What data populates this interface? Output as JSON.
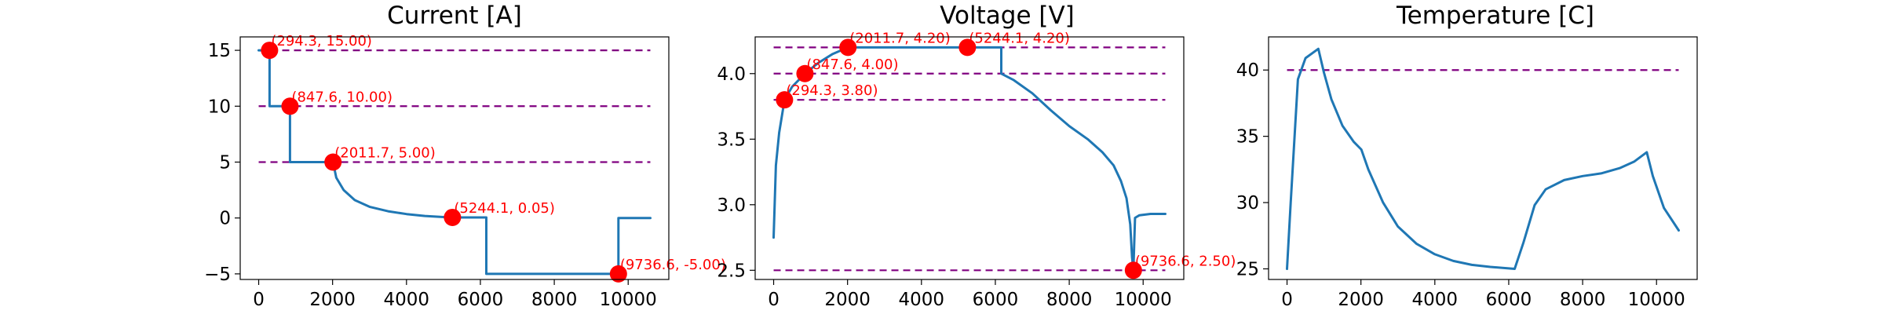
{
  "colors": {
    "series": "#1f77b4",
    "reference": "#800080",
    "marker": "#ff0000",
    "annotation": "#ff0000"
  },
  "chart_data": [
    {
      "type": "line",
      "title": "Current [A]",
      "xlabel": "",
      "ylabel": "",
      "xlim": [
        -500,
        11100
      ],
      "ylim": [
        -5.5,
        16.2
      ],
      "xticks": [
        0,
        2000,
        4000,
        6000,
        8000,
        10000
      ],
      "yticks": [
        -5,
        0,
        5,
        10,
        15
      ],
      "yticklabels": [
        "−5",
        "0",
        "5",
        "10",
        "15"
      ],
      "grid": false,
      "reference_lines": [
        {
          "y": 15,
          "x": [
            0,
            10600
          ]
        },
        {
          "y": 10,
          "x": [
            0,
            10600
          ]
        },
        {
          "y": 5,
          "x": [
            0,
            10600
          ]
        }
      ],
      "series": [
        {
          "x": [
            0,
            280,
            294.3,
            294.3,
            847.6,
            847.6,
            2011.7,
            2100,
            2300,
            2600,
            3000,
            3500,
            4000,
            4500,
            5000,
            5244.1,
            6160,
            6160,
            9736.6,
            9736.6,
            10600
          ],
          "y": [
            15,
            15,
            15,
            10,
            10,
            5,
            5,
            3.6,
            2.5,
            1.6,
            1.0,
            0.6,
            0.35,
            0.18,
            0.08,
            0.05,
            0.05,
            -5,
            -5,
            0,
            0
          ]
        }
      ],
      "markers": [
        {
          "x": 294.3,
          "y": 15,
          "label": "(294.3, 15.00)"
        },
        {
          "x": 847.6,
          "y": 10,
          "label": "(847.6, 10.00)"
        },
        {
          "x": 2011.7,
          "y": 5,
          "label": "(2011.7, 5.00)"
        },
        {
          "x": 5244.1,
          "y": 0.05,
          "label": "(5244.1, 0.05)"
        },
        {
          "x": 9736.6,
          "y": -5,
          "label": "(9736.6, -5.00)"
        }
      ]
    },
    {
      "type": "line",
      "title": "Voltage [V]",
      "xlabel": "",
      "ylabel": "",
      "xlim": [
        -500,
        11100
      ],
      "ylim": [
        2.43,
        4.28
      ],
      "xticks": [
        0,
        2000,
        4000,
        6000,
        8000,
        10000
      ],
      "yticks": [
        2.5,
        3.0,
        3.5,
        4.0
      ],
      "yticklabels": [
        "2.5",
        "3.0",
        "3.5",
        "4.0"
      ],
      "grid": false,
      "reference_lines": [
        {
          "y": 4.2,
          "x": [
            0,
            10600
          ]
        },
        {
          "y": 4.0,
          "x": [
            0,
            10600
          ]
        },
        {
          "y": 3.8,
          "x": [
            0,
            10600
          ]
        },
        {
          "y": 2.5,
          "x": [
            0,
            10600
          ]
        }
      ],
      "series": [
        {
          "x": [
            0,
            60,
            150,
            294.3,
            500,
            847.6,
            1200,
            1600,
            2011.7,
            3000,
            4000,
            5244.1,
            6160,
            6160,
            6500,
            7000,
            7500,
            8000,
            8500,
            8900,
            9200,
            9400,
            9550,
            9650,
            9700,
            9736.6,
            9780,
            9900,
            10200,
            10600
          ],
          "y": [
            2.75,
            3.3,
            3.55,
            3.8,
            3.9,
            4.0,
            4.08,
            4.15,
            4.2,
            4.2,
            4.2,
            4.2,
            4.2,
            4.0,
            3.95,
            3.85,
            3.72,
            3.6,
            3.5,
            3.4,
            3.3,
            3.18,
            3.05,
            2.85,
            2.6,
            2.5,
            2.9,
            2.92,
            2.93,
            2.93
          ]
        }
      ],
      "markers": [
        {
          "x": 294.3,
          "y": 3.8,
          "label": "(294.3, 3.80)"
        },
        {
          "x": 847.6,
          "y": 4.0,
          "label": "(847.6, 4.00)"
        },
        {
          "x": 2011.7,
          "y": 4.2,
          "label": "(2011.7, 4.20)"
        },
        {
          "x": 5244.1,
          "y": 4.2,
          "label": "(5244.1, 4.20)"
        },
        {
          "x": 9736.6,
          "y": 2.5,
          "label": "(9736.6, 2.50)"
        }
      ]
    },
    {
      "type": "line",
      "title": "Temperature [C]",
      "xlabel": "",
      "ylabel": "",
      "xlim": [
        -500,
        11100
      ],
      "ylim": [
        24.2,
        42.5
      ],
      "xticks": [
        0,
        2000,
        4000,
        6000,
        8000,
        10000
      ],
      "yticks": [
        25,
        30,
        35,
        40
      ],
      "yticklabels": [
        "25",
        "30",
        "35",
        "40"
      ],
      "grid": false,
      "reference_lines": [
        {
          "y": 40,
          "x": [
            0,
            10600
          ]
        }
      ],
      "series": [
        {
          "x": [
            0,
            100,
            294.3,
            500,
            847.6,
            1000,
            1200,
            1500,
            1800,
            2011.7,
            2200,
            2600,
            3000,
            3500,
            4000,
            4500,
            5000,
            5500,
            6160,
            6400,
            6700,
            7000,
            7500,
            8000,
            8500,
            9000,
            9400,
            9736.6,
            9900,
            10200,
            10600
          ],
          "y": [
            25,
            30,
            39.3,
            40.9,
            41.6,
            39.8,
            37.8,
            35.8,
            34.6,
            34.0,
            32.5,
            30.0,
            28.2,
            26.9,
            26.1,
            25.6,
            25.3,
            25.15,
            25.0,
            27.0,
            29.8,
            31.0,
            31.7,
            32.0,
            32.2,
            32.6,
            33.1,
            33.8,
            32.0,
            29.6,
            27.9
          ]
        }
      ],
      "markers": []
    }
  ]
}
